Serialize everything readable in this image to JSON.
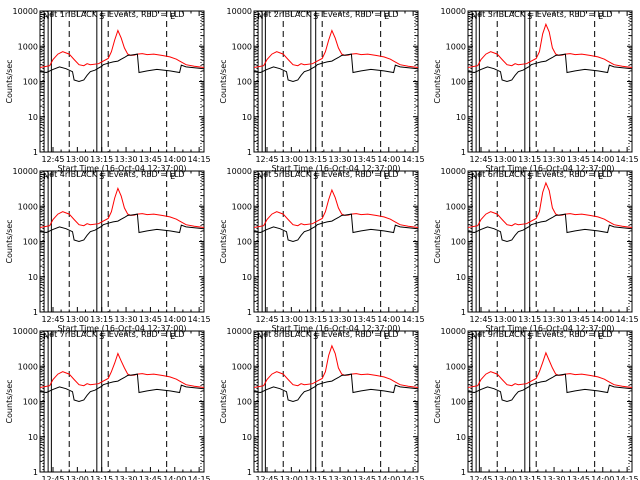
{
  "chart_data": {
    "type": "line",
    "layout_grid": "3x3",
    "yscale": "log",
    "ylim": [
      1,
      10000
    ],
    "ylabel": "Counts/sec",
    "xlabel": "Start Time (16-Oct-04 12:37:00)",
    "x_ticks": [
      "12:45",
      "13:00",
      "13:15",
      "13:30",
      "13:45",
      "14:00",
      "14:15"
    ],
    "y_ticks": [
      "1",
      "10",
      "100",
      "1000",
      "10000"
    ],
    "xlim_minutes": [
      0,
      101
    ],
    "marker_labels": [
      "N",
      "S",
      "E"
    ],
    "series_colors": {
      "events": "#000000",
      "lld": "#ff0000"
    },
    "panels": [
      {
        "title": "Det 1r BLACK = Events, RED = LLD",
        "peak": 2800
      },
      {
        "title": "Det 2r BLACK = Events, RED = LLD",
        "peak": 2800
      },
      {
        "title": "Det 3r BLACK = Events, RED = LLD",
        "peak": 4200
      },
      {
        "title": "Det 4r BLACK = Events, RED = LLD",
        "peak": 3200
      },
      {
        "title": "Det 5r BLACK = Events, RED = LLD",
        "peak": 2900
      },
      {
        "title": "Det 6r BLACK = Events, RED = LLD",
        "peak": 4600
      },
      {
        "title": "Det 7r BLACK = Events, RED = LLD",
        "peak": 2300
      },
      {
        "title": "Det 8r BLACK = Events, RED = LLD",
        "peak": 3800
      },
      {
        "title": "Det 9r BLACK = Events, RED = LLD",
        "peak": 2400
      }
    ],
    "lld_curve": {
      "x": [
        0,
        6,
        8,
        11,
        14,
        18,
        21,
        24,
        27,
        29,
        31,
        36,
        39,
        42,
        44,
        46,
        48,
        50,
        52,
        54,
        56,
        58,
        60,
        63,
        66,
        70,
        75,
        80,
        84,
        86,
        90,
        95,
        101
      ],
      "y": [
        250,
        280,
        420,
        600,
        700,
        600,
        420,
        300,
        280,
        320,
        300,
        320,
        380,
        450,
        700,
        1500,
        2800,
        1700,
        900,
        600,
        550,
        560,
        600,
        620,
        580,
        600,
        550,
        500,
        430,
        380,
        300,
        270,
        250
      ]
    },
    "events_curve": {
      "x": [
        0,
        4,
        8,
        12,
        16,
        20,
        21,
        24,
        27,
        29,
        31,
        34,
        36,
        38,
        39,
        42,
        45,
        48,
        50,
        52,
        54,
        56,
        58,
        60,
        61,
        66,
        72,
        80,
        86,
        87,
        90,
        95,
        101
      ],
      "y": [
        190,
        180,
        220,
        260,
        230,
        190,
        110,
        100,
        110,
        150,
        190,
        210,
        240,
        270,
        300,
        330,
        360,
        380,
        430,
        480,
        550,
        560,
        580,
        600,
        180,
        200,
        220,
        200,
        180,
        290,
        260,
        245,
        230
      ]
    },
    "solid_vlines": [
      2.5,
      5,
      7,
      35,
      38
    ],
    "dashed_vlines": [
      18,
      42,
      78
    ],
    "dotted_vlines": [
      0,
      101
    ]
  }
}
